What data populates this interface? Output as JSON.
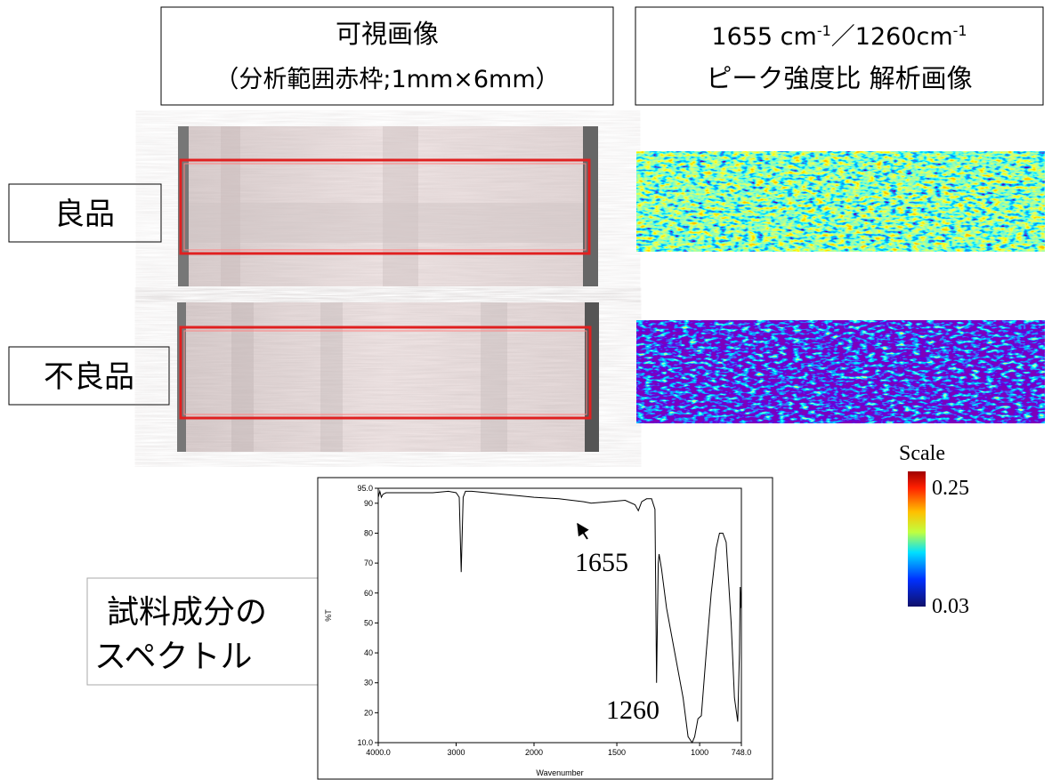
{
  "visible_header": {
    "title": "可視画像",
    "subtitle": "（分析範囲赤枠;1mm×6mm）"
  },
  "analysis_header": {
    "title_parts": [
      "1655 cm",
      "-1",
      "／1260cm",
      "-1"
    ],
    "subtitle": "ピーク強度比 解析画像"
  },
  "rows": [
    {
      "label": "良品"
    },
    {
      "label": "不良品"
    }
  ],
  "scale": {
    "title": "Scale",
    "labels": [
      0.25,
      0.03
    ]
  },
  "spectrum_label": [
    "試料成分の",
    "スペクトル"
  ],
  "chart_data": {
    "type": "line",
    "xlabel": "Wavenumber",
    "ylabel": "%T",
    "color": "#000000",
    "x": [
      4000,
      3980,
      3960,
      3940,
      3900,
      3700,
      3500,
      3300,
      3100,
      3000,
      2960,
      2935,
      2910,
      2880,
      2800,
      2600,
      2400,
      2200,
      2000,
      1850,
      1700,
      1655,
      1550,
      1450,
      1390,
      1370,
      1350,
      1320,
      1290,
      1270,
      1260,
      1250,
      1245,
      1230,
      1200,
      1150,
      1100,
      1070,
      1045,
      1030,
      1010,
      990,
      960,
      930,
      900,
      880,
      860,
      840,
      810,
      790,
      770,
      760,
      755,
      750
    ],
    "values": [
      92,
      94,
      92,
      93,
      93.5,
      93.5,
      93.5,
      93.5,
      94,
      93.5,
      92,
      67,
      92,
      94,
      94,
      93.5,
      93,
      92.5,
      92,
      91.5,
      90.5,
      90,
      90.5,
      91,
      89.5,
      87.5,
      90.5,
      91.5,
      91.5,
      88,
      30,
      70,
      73,
      68,
      55,
      40,
      25,
      12,
      10,
      12,
      18,
      19,
      40,
      60,
      75,
      80,
      80,
      77,
      50,
      25,
      17,
      40,
      62,
      55
    ],
    "xlim": [
      4000,
      748
    ],
    "ylim": [
      10,
      95
    ],
    "xticks": [
      {
        "value": 4000,
        "label": "4000.0"
      },
      3000,
      2000,
      1500,
      1000,
      {
        "value": 748,
        "label": "748.0"
      }
    ],
    "yticks": [
      {
        "value": 10,
        "label": "10.0"
      },
      20,
      30,
      40,
      50,
      60,
      70,
      80,
      90,
      {
        "value": 95,
        "label": "95.0"
      }
    ],
    "annotations": [
      "1655",
      "1260"
    ]
  }
}
